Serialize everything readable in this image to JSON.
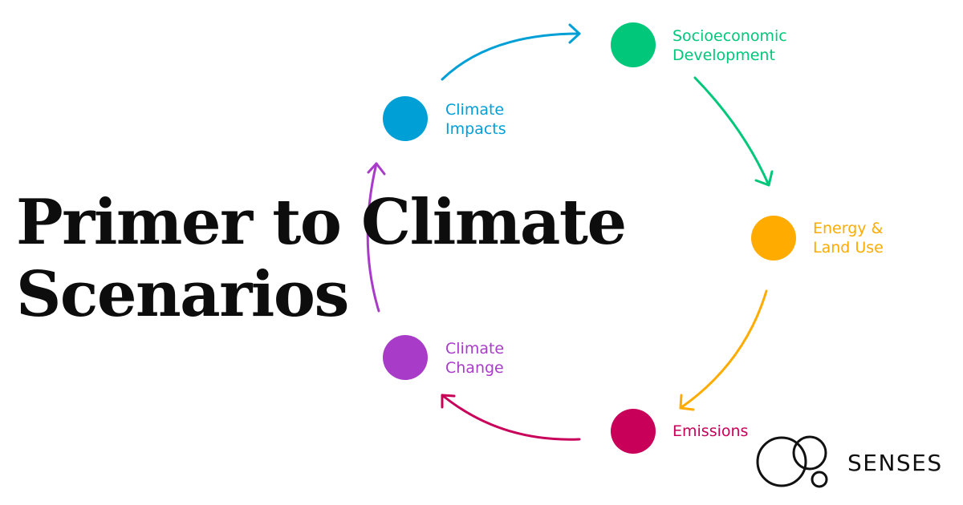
{
  "title": {
    "line1": "Primer to Climate",
    "line2": "Scenarios"
  },
  "nodes": [
    {
      "id": "socioeconomic-development",
      "line1": "Socioeconomic",
      "line2": "Development",
      "color": "#00c77a"
    },
    {
      "id": "energy-land-use",
      "line1": "Energy &",
      "line2": "Land Use",
      "color": "#ffab00"
    },
    {
      "id": "emissions",
      "line1": "Emissions",
      "line2": "",
      "color": "#c8005a"
    },
    {
      "id": "climate-change",
      "line1": "Climate",
      "line2": "Change",
      "color": "#a93bc9"
    },
    {
      "id": "climate-impacts",
      "line1": "Climate",
      "line2": "Impacts",
      "color": "#00a0d6"
    }
  ],
  "edges": [
    {
      "from": "climate-impacts",
      "to": "socioeconomic-development",
      "color": "#00a0d6"
    },
    {
      "from": "socioeconomic-development",
      "to": "energy-land-use",
      "color": "#00c77a"
    },
    {
      "from": "energy-land-use",
      "to": "emissions",
      "color": "#ffab00"
    },
    {
      "from": "emissions",
      "to": "climate-change",
      "color": "#c8005a"
    },
    {
      "from": "climate-change",
      "to": "climate-impacts",
      "color": "#a93bc9"
    }
  ],
  "brand": {
    "name": "SENSES",
    "logo_icon": "senses-logo-icon"
  }
}
